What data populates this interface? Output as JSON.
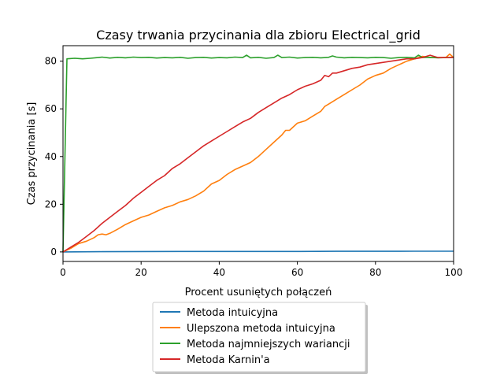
{
  "chart_data": {
    "type": "line",
    "title": "Czasy trwania przycinania dla zbioru Electrical_grid",
    "xlabel": "Procent usuniętych połączeń",
    "ylabel": "Czas przycinania [s]",
    "xlim": [
      0,
      100
    ],
    "ylim": [
      -4,
      86.5
    ],
    "xticks": [
      0,
      20,
      40,
      60,
      80,
      100
    ],
    "yticks": [
      0,
      20,
      40,
      60,
      80
    ],
    "grid": false,
    "legend_position": "below plot, centered",
    "series": [
      {
        "name": "Metoda intuicyjna",
        "color": "#1f77b4",
        "points": [
          [
            0,
            0
          ],
          [
            10,
            0.1
          ],
          [
            20,
            0.15
          ],
          [
            30,
            0.2
          ],
          [
            40,
            0.2
          ],
          [
            50,
            0.2
          ],
          [
            60,
            0.2
          ],
          [
            70,
            0.25
          ],
          [
            80,
            0.25
          ],
          [
            90,
            0.3
          ],
          [
            100,
            0.3
          ]
        ]
      },
      {
        "name": "Ulepszona metoda intuicyjna",
        "color": "#ff7f0e",
        "points": [
          [
            0,
            0
          ],
          [
            2,
            1.5
          ],
          [
            4,
            3.5
          ],
          [
            6,
            4.5
          ],
          [
            8,
            6
          ],
          [
            9,
            7.2
          ],
          [
            10,
            7.5
          ],
          [
            11,
            7.2
          ],
          [
            12,
            7.8
          ],
          [
            14,
            9.5
          ],
          [
            16,
            11.5
          ],
          [
            18,
            13
          ],
          [
            20,
            14.5
          ],
          [
            22,
            15.5
          ],
          [
            24,
            17
          ],
          [
            26,
            18.5
          ],
          [
            28,
            19.5
          ],
          [
            30,
            21
          ],
          [
            32,
            22
          ],
          [
            34,
            23.5
          ],
          [
            36,
            25.5
          ],
          [
            38,
            28.5
          ],
          [
            40,
            30
          ],
          [
            42,
            32.5
          ],
          [
            44,
            34.5
          ],
          [
            46,
            36
          ],
          [
            48,
            37.5
          ],
          [
            50,
            40
          ],
          [
            52,
            43
          ],
          [
            54,
            46
          ],
          [
            56,
            49
          ],
          [
            57,
            51
          ],
          [
            58,
            51
          ],
          [
            60,
            54
          ],
          [
            62,
            55
          ],
          [
            64,
            57
          ],
          [
            66,
            59
          ],
          [
            67,
            61
          ],
          [
            68,
            62
          ],
          [
            70,
            64
          ],
          [
            72,
            66
          ],
          [
            74,
            68
          ],
          [
            76,
            70
          ],
          [
            78,
            72.5
          ],
          [
            80,
            74
          ],
          [
            82,
            75
          ],
          [
            84,
            77
          ],
          [
            86,
            78.5
          ],
          [
            88,
            80
          ],
          [
            90,
            81
          ],
          [
            92,
            82
          ],
          [
            94,
            81.5
          ],
          [
            96,
            81.5
          ],
          [
            98,
            81.5
          ],
          [
            99,
            83
          ],
          [
            100,
            81.5
          ]
        ]
      },
      {
        "name": "Metoda najmniejszych wariancji",
        "color": "#2ca02c",
        "points": [
          [
            0,
            0
          ],
          [
            1,
            81
          ],
          [
            3,
            81.2
          ],
          [
            5,
            81
          ],
          [
            7,
            81.2
          ],
          [
            9,
            81.5
          ],
          [
            10,
            81.7
          ],
          [
            12,
            81.3
          ],
          [
            14,
            81.6
          ],
          [
            16,
            81.4
          ],
          [
            18,
            81.7
          ],
          [
            20,
            81.5
          ],
          [
            22,
            81.6
          ],
          [
            24,
            81.3
          ],
          [
            26,
            81.5
          ],
          [
            28,
            81.4
          ],
          [
            30,
            81.6
          ],
          [
            32,
            81.2
          ],
          [
            34,
            81.5
          ],
          [
            36,
            81.6
          ],
          [
            38,
            81.3
          ],
          [
            40,
            81.5
          ],
          [
            42,
            81.4
          ],
          [
            44,
            81.7
          ],
          [
            46,
            81.5
          ],
          [
            47,
            82.5
          ],
          [
            48,
            81.4
          ],
          [
            50,
            81.6
          ],
          [
            52,
            81.2
          ],
          [
            54,
            81.5
          ],
          [
            55,
            82.5
          ],
          [
            56,
            81.5
          ],
          [
            58,
            81.7
          ],
          [
            60,
            81.3
          ],
          [
            62,
            81.5
          ],
          [
            64,
            81.6
          ],
          [
            66,
            81.4
          ],
          [
            68,
            81.6
          ],
          [
            69,
            82.2
          ],
          [
            70,
            81.7
          ],
          [
            72,
            81.4
          ],
          [
            74,
            81.6
          ],
          [
            76,
            81.5
          ],
          [
            78,
            81.4
          ],
          [
            80,
            81.6
          ],
          [
            82,
            81.5
          ],
          [
            84,
            81.2
          ],
          [
            86,
            81.5
          ],
          [
            88,
            81.6
          ],
          [
            90,
            81.4
          ],
          [
            91,
            82.5
          ],
          [
            92,
            81.5
          ],
          [
            94,
            81.6
          ],
          [
            96,
            81.4
          ],
          [
            98,
            81.5
          ],
          [
            100,
            81.6
          ]
        ]
      },
      {
        "name": "Metoda Karnin'a",
        "color": "#d62728",
        "points": [
          [
            0,
            0
          ],
          [
            2,
            2
          ],
          [
            4,
            4
          ],
          [
            6,
            6.5
          ],
          [
            8,
            9
          ],
          [
            10,
            12
          ],
          [
            12,
            14.5
          ],
          [
            14,
            17
          ],
          [
            16,
            19.5
          ],
          [
            18,
            22.5
          ],
          [
            20,
            25
          ],
          [
            22,
            27.5
          ],
          [
            24,
            30
          ],
          [
            26,
            32
          ],
          [
            28,
            35
          ],
          [
            30,
            37
          ],
          [
            32,
            39.5
          ],
          [
            34,
            42
          ],
          [
            36,
            44.5
          ],
          [
            38,
            46.5
          ],
          [
            40,
            48.5
          ],
          [
            42,
            50.5
          ],
          [
            44,
            52.5
          ],
          [
            46,
            54.5
          ],
          [
            48,
            56
          ],
          [
            50,
            58.5
          ],
          [
            52,
            60.5
          ],
          [
            54,
            62.5
          ],
          [
            56,
            64.5
          ],
          [
            58,
            66
          ],
          [
            60,
            68
          ],
          [
            62,
            69.5
          ],
          [
            64,
            70.5
          ],
          [
            66,
            72
          ],
          [
            67,
            74
          ],
          [
            68,
            73.5
          ],
          [
            69,
            75
          ],
          [
            70,
            75
          ],
          [
            72,
            76
          ],
          [
            74,
            77
          ],
          [
            76,
            77.5
          ],
          [
            78,
            78.5
          ],
          [
            80,
            79
          ],
          [
            82,
            79.5
          ],
          [
            84,
            80
          ],
          [
            86,
            80.5
          ],
          [
            88,
            81
          ],
          [
            90,
            81
          ],
          [
            92,
            81.5
          ],
          [
            94,
            82.5
          ],
          [
            96,
            81.5
          ],
          [
            98,
            81.5
          ],
          [
            100,
            81.5
          ]
        ]
      }
    ]
  }
}
